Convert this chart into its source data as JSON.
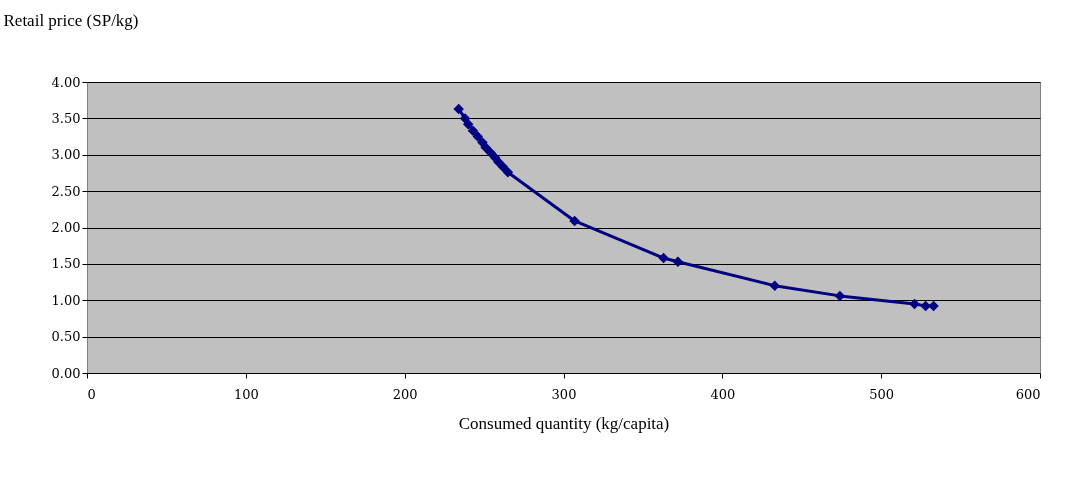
{
  "chart_data": {
    "type": "line",
    "xlabel": "Consumed quantity (kg/capita)",
    "ylabel": "Retail price (SP/kg)",
    "series": [
      {
        "color": "#000080",
        "x": [
          234,
          238,
          240,
          243,
          246,
          249,
          251,
          254,
          257,
          259,
          262,
          265,
          307,
          363,
          372,
          433,
          474,
          521,
          528,
          533
        ],
        "values": [
          3.63,
          3.5,
          3.42,
          3.33,
          3.25,
          3.17,
          3.1,
          3.03,
          2.96,
          2.9,
          2.83,
          2.76,
          2.09,
          1.58,
          1.53,
          1.2,
          1.06,
          0.95,
          0.92,
          0.92
        ]
      }
    ],
    "xlim": [
      0,
      600
    ],
    "xticks": [
      0,
      100,
      200,
      300,
      400,
      500,
      600
    ],
    "ylim": [
      0,
      4
    ],
    "yticks": [
      {
        "value": 0,
        "label": "0.00"
      },
      {
        "value": 0.5,
        "label": "0.50"
      },
      {
        "value": 1,
        "label": "1.00"
      },
      {
        "value": 1.5,
        "label": "1.50"
      },
      {
        "value": 2,
        "label": "2.00"
      },
      {
        "value": 2.5,
        "label": "2.50"
      },
      {
        "value": 3,
        "label": "3.00"
      },
      {
        "value": 3.5,
        "label": "3.50"
      },
      {
        "value": 4,
        "label": "4.00"
      }
    ],
    "grid": "y",
    "marker": "diamond",
    "line_style": "solid",
    "legend": false
  }
}
